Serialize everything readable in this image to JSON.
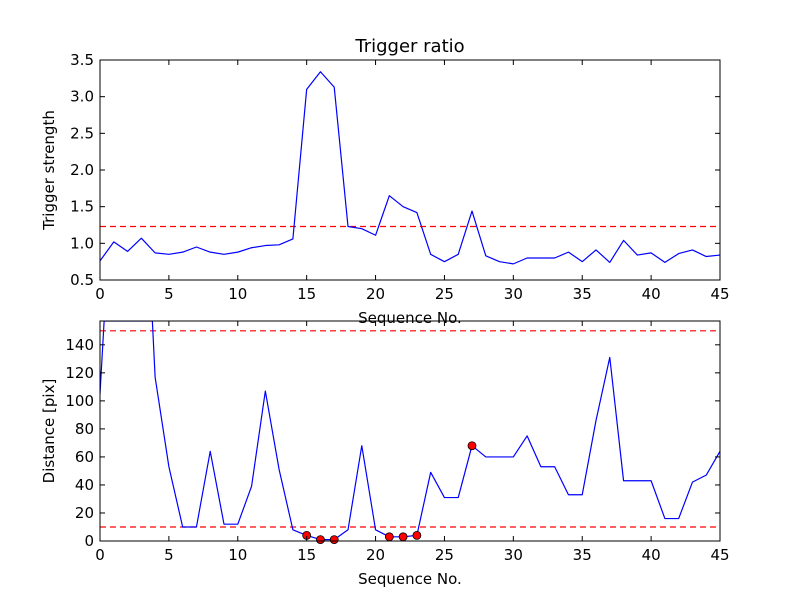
{
  "chart_data": [
    {
      "type": "line",
      "title": "Trigger ratio",
      "xlabel": "Sequence No.",
      "ylabel": "Trigger strength",
      "xlim": [
        0,
        45
      ],
      "ylim": [
        0.5,
        3.5
      ],
      "xticks": [
        0,
        5,
        10,
        15,
        20,
        25,
        30,
        35,
        40,
        45
      ],
      "yticks": [
        0.5,
        1.0,
        1.5,
        2.0,
        2.5,
        3.0,
        3.5
      ],
      "ytick_labels": [
        "0.5",
        "1.0",
        "1.5",
        "2.0",
        "2.5",
        "3.0",
        "3.5"
      ],
      "series": [
        {
          "color": "#0000ff",
          "x": [
            0,
            1,
            2,
            3,
            4,
            5,
            6,
            7,
            8,
            9,
            10,
            11,
            12,
            13,
            14,
            15,
            16,
            17,
            18,
            19,
            20,
            21,
            22,
            23,
            24,
            25,
            26,
            27,
            28,
            29,
            30,
            31,
            32,
            33,
            34,
            35,
            36,
            37,
            38,
            39,
            40,
            41,
            42,
            43,
            44,
            45
          ],
          "y": [
            0.76,
            1.02,
            0.89,
            1.07,
            0.87,
            0.85,
            0.88,
            0.95,
            0.88,
            0.85,
            0.88,
            0.94,
            0.97,
            0.98,
            1.06,
            3.1,
            3.34,
            3.13,
            1.23,
            1.2,
            1.11,
            1.65,
            1.5,
            1.42,
            0.85,
            0.75,
            0.85,
            1.44,
            0.83,
            0.75,
            0.72,
            0.8,
            0.8,
            0.8,
            0.88,
            0.75,
            0.91,
            0.74,
            1.04,
            0.84,
            0.87,
            0.74,
            0.86,
            0.91,
            0.82,
            0.84
          ]
        }
      ],
      "threshold_lines": [
        {
          "y": 1.23,
          "color": "#ff0000",
          "style": "dashed"
        }
      ]
    },
    {
      "type": "line",
      "title": "",
      "xlabel": "Sequence No.",
      "ylabel": "Distance [pix]",
      "xlim": [
        0,
        45
      ],
      "ylim": [
        0,
        157
      ],
      "xticks": [
        0,
        5,
        10,
        15,
        20,
        25,
        30,
        35,
        40,
        45
      ],
      "yticks": [
        0,
        20,
        40,
        60,
        80,
        100,
        120,
        140
      ],
      "ytick_labels": [
        "0",
        "20",
        "40",
        "60",
        "80",
        "100",
        "120",
        "140"
      ],
      "series": [
        {
          "color": "#0000ff",
          "x": [
            0,
            0.3,
            1,
            2,
            3,
            3.8,
            4,
            5,
            6,
            7,
            8,
            9,
            10,
            11,
            12,
            13,
            14,
            15,
            16,
            17,
            18,
            19,
            20,
            21,
            22,
            23,
            24,
            25,
            26,
            27,
            28,
            29,
            30,
            31,
            32,
            33,
            34,
            35,
            36,
            37,
            38,
            39,
            40,
            41,
            42,
            43,
            44,
            45
          ],
          "y": [
            105,
            157,
            157,
            157,
            157,
            157,
            117,
            53,
            10,
            10,
            64,
            12,
            12,
            39,
            107,
            51,
            8,
            4,
            1,
            1,
            8,
            68,
            8,
            3,
            3,
            4,
            49,
            31,
            31,
            68,
            60,
            60,
            60,
            75,
            53,
            53,
            33,
            33,
            86,
            131,
            43,
            43,
            43,
            16,
            16,
            42,
            47,
            64
          ]
        }
      ],
      "highlighted_points": {
        "color": "#ff0000",
        "x": [
          15,
          16,
          17,
          21,
          22,
          23,
          27
        ],
        "y": [
          4,
          1,
          1,
          3,
          3,
          4,
          68
        ]
      },
      "threshold_lines": [
        {
          "y": 150,
          "color": "#ff0000",
          "style": "dashed"
        },
        {
          "y": 10,
          "color": "#ff0000",
          "style": "dashed"
        }
      ]
    }
  ]
}
